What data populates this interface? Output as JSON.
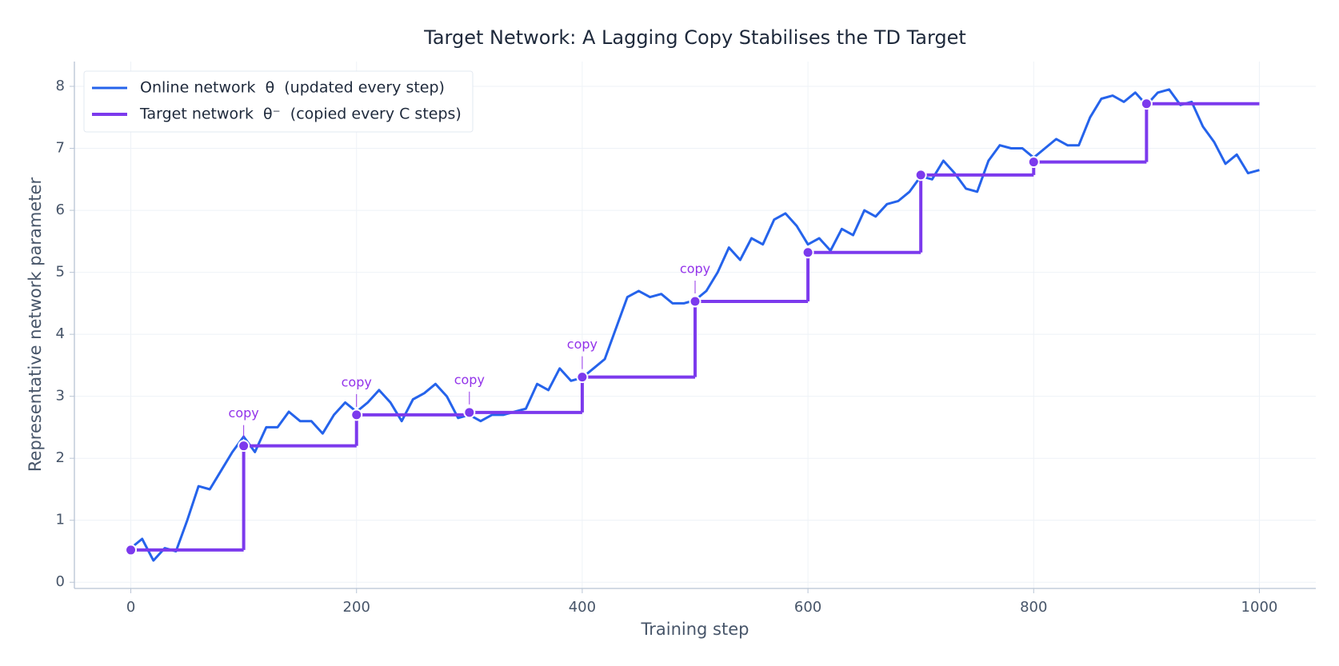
{
  "chart_data": {
    "type": "line",
    "title": "Target Network: A Lagging Copy Stabilises the TD Target",
    "x_label": "Training step",
    "y_label": "Representative network parameter",
    "xlim": [
      -50,
      1050
    ],
    "ylim": [
      -0.1,
      8.4
    ],
    "xticks": [
      0,
      200,
      400,
      600,
      800,
      1000
    ],
    "yticks": [
      0,
      1,
      2,
      3,
      4,
      5,
      6,
      7,
      8
    ],
    "grid": true,
    "legend": "upper left",
    "series": [
      {
        "name": "Online network  θ  (updated every step)",
        "color": "#2563eb",
        "style": "line",
        "x": [
          0,
          10,
          20,
          30,
          40,
          50,
          60,
          70,
          80,
          90,
          100,
          110,
          120,
          130,
          140,
          150,
          160,
          170,
          180,
          190,
          200,
          210,
          220,
          230,
          240,
          250,
          260,
          270,
          280,
          290,
          300,
          310,
          320,
          330,
          340,
          350,
          360,
          370,
          380,
          390,
          400,
          410,
          420,
          430,
          440,
          450,
          460,
          470,
          480,
          490,
          500,
          510,
          520,
          530,
          540,
          550,
          560,
          570,
          580,
          590,
          600,
          610,
          620,
          630,
          640,
          650,
          660,
          670,
          680,
          690,
          700,
          710,
          720,
          730,
          740,
          750,
          760,
          770,
          780,
          790,
          800,
          810,
          820,
          830,
          840,
          850,
          860,
          870,
          880,
          890,
          900,
          910,
          920,
          930,
          940,
          950,
          960,
          970,
          980,
          990,
          1000
        ],
        "values": [
          0.55,
          0.7,
          0.35,
          0.55,
          0.5,
          1.0,
          1.55,
          1.5,
          1.8,
          2.1,
          2.35,
          2.1,
          2.5,
          2.5,
          2.75,
          2.6,
          2.6,
          2.4,
          2.7,
          2.9,
          2.75,
          2.9,
          3.1,
          2.9,
          2.6,
          2.95,
          3.05,
          3.2,
          3.0,
          2.65,
          2.7,
          2.6,
          2.7,
          2.7,
          2.75,
          2.8,
          3.2,
          3.1,
          3.45,
          3.25,
          3.3,
          3.45,
          3.6,
          4.1,
          4.6,
          4.7,
          4.6,
          4.65,
          4.5,
          4.5,
          4.55,
          4.7,
          5.0,
          5.4,
          5.2,
          5.55,
          5.45,
          5.85,
          5.95,
          5.75,
          5.45,
          5.55,
          5.35,
          5.7,
          5.6,
          6.0,
          5.9,
          6.1,
          6.15,
          6.3,
          6.55,
          6.5,
          6.8,
          6.6,
          6.35,
          6.3,
          6.8,
          7.05,
          7.0,
          7.0,
          6.85,
          7.0,
          7.15,
          7.05,
          7.05,
          7.5,
          7.8,
          7.85,
          7.75,
          7.9,
          7.7,
          7.9,
          7.95,
          7.7,
          7.75,
          7.35,
          7.1,
          6.75,
          6.9,
          6.6,
          6.65
        ]
      },
      {
        "name": "Target network  θ⁻  (copied every C steps)",
        "color": "#7c3aed",
        "style": "step",
        "x": [
          0,
          100,
          200,
          300,
          400,
          500,
          600,
          700,
          800,
          900
        ],
        "values": [
          0.52,
          2.2,
          2.7,
          2.74,
          3.31,
          4.53,
          5.32,
          6.57,
          6.78,
          7.72
        ]
      }
    ],
    "annotations": [
      {
        "text": "copy",
        "x": 100
      },
      {
        "text": "copy",
        "x": 200
      },
      {
        "text": "copy",
        "x": 300
      },
      {
        "text": "copy",
        "x": 400
      },
      {
        "text": "copy",
        "x": 500
      }
    ],
    "annotation_color": "#9333ea"
  }
}
